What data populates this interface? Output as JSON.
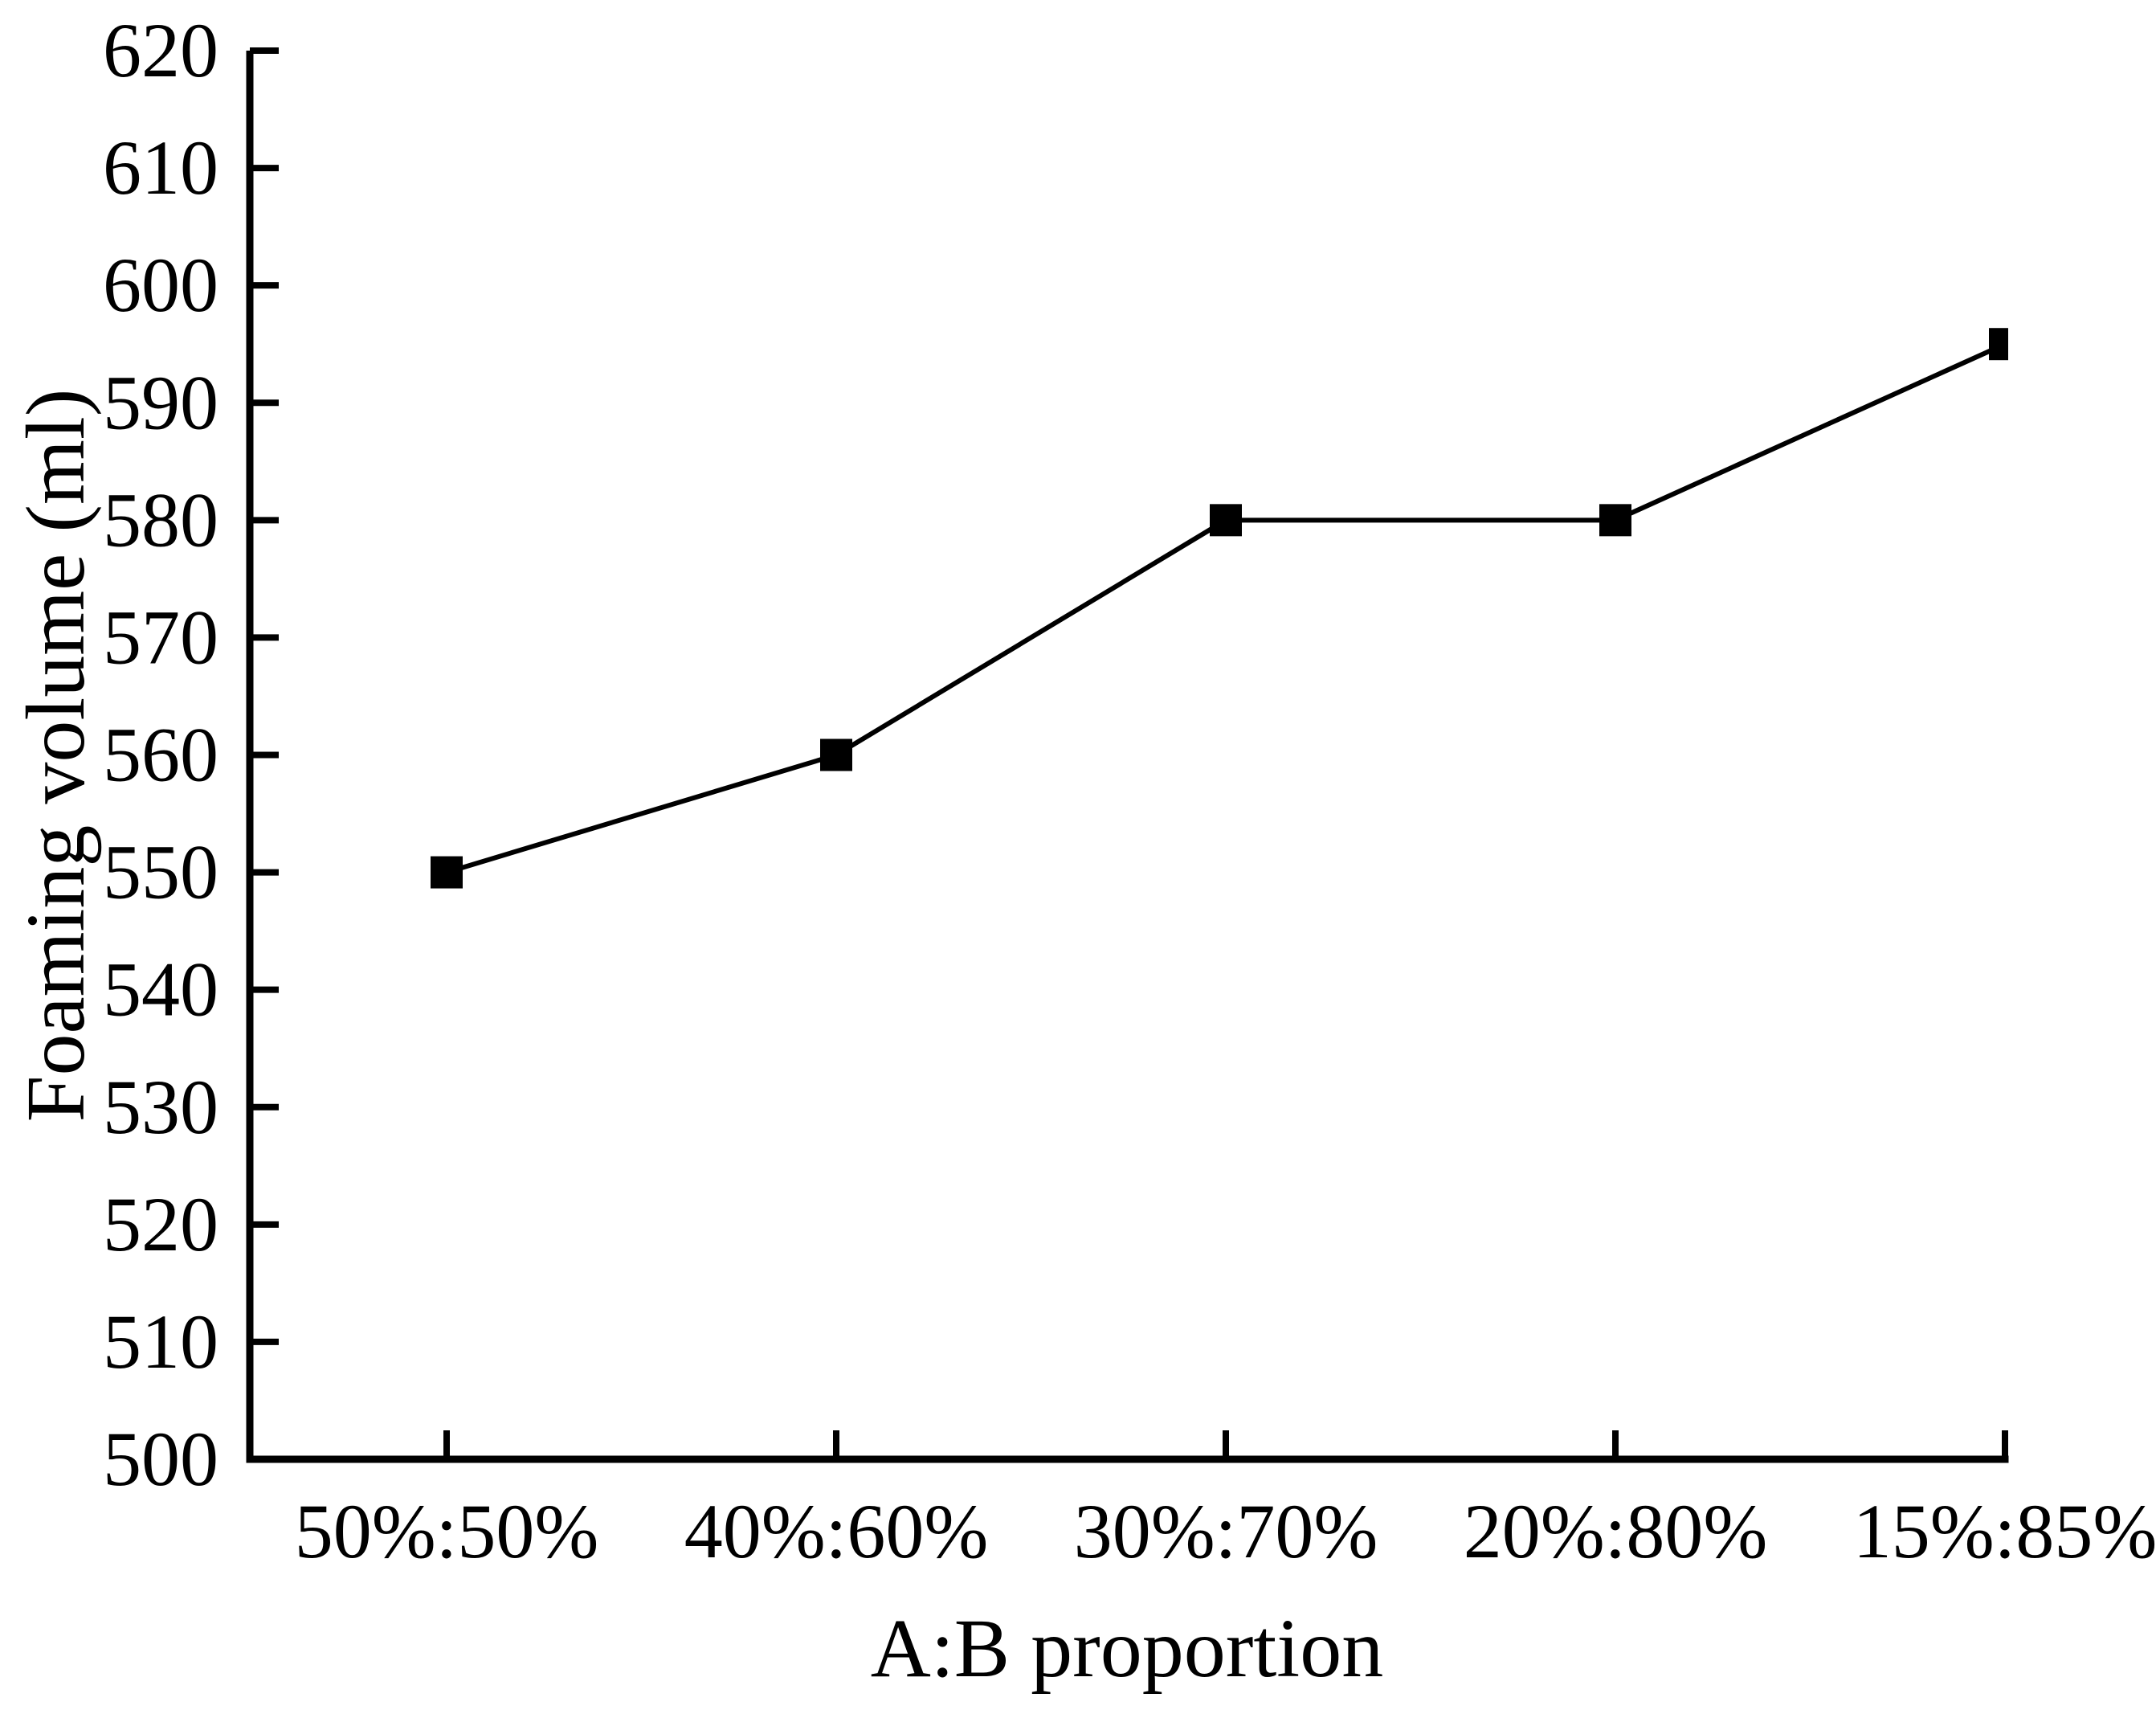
{
  "page": {
    "background_color": "#ffffff",
    "ink_color": "#000000"
  },
  "chart_data": {
    "type": "line",
    "title": "",
    "xlabel": "A:B proportion",
    "ylabel": "Foaming volume (ml)",
    "categories": [
      "50%:50%",
      "40%:60%",
      "30%:70%",
      "20%:80%",
      "15%:85%"
    ],
    "series": [
      {
        "name": "foaming-volume",
        "values": [
          550,
          560,
          580,
          580,
          595
        ]
      }
    ],
    "ylim": [
      500,
      620
    ],
    "yticks": [
      500,
      510,
      520,
      530,
      540,
      550,
      560,
      570,
      580,
      590,
      600,
      610,
      620
    ],
    "grid": false,
    "legend": "none",
    "marker": "filled-square",
    "line_color": "#000000",
    "axis_color": "#000000",
    "background_color": "#ffffff",
    "spines": [
      "left",
      "bottom"
    ],
    "tick_direction": "in"
  }
}
